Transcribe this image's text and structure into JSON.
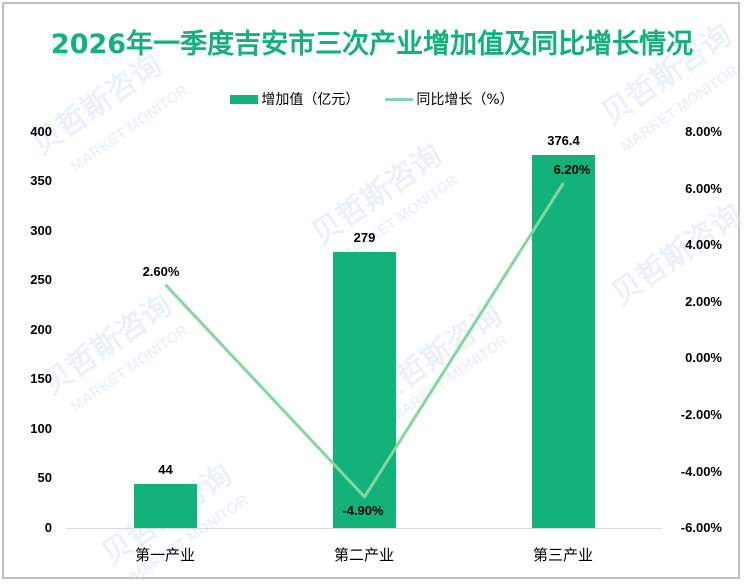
{
  "title": "2026年一季度吉安市三次产业增加值及同比增长情况",
  "legend": [
    {
      "label": "增加值（亿元）",
      "type": "bar",
      "color": "#13b27a"
    },
    {
      "label": "同比增长（%）",
      "type": "line",
      "color": "#82d8a0"
    }
  ],
  "watermark": {
    "cn": "贝哲斯咨询",
    "en": "MARKET MONITOR"
  },
  "axes": {
    "left_ticks": [
      "400",
      "350",
      "300",
      "250",
      "200",
      "150",
      "100",
      "50",
      "0"
    ],
    "right_ticks": [
      "8.00%",
      "6.00%",
      "4.00%",
      "2.00%",
      "0.00%",
      "-2.00%",
      "-4.00%",
      "-6.00%"
    ]
  },
  "categories": [
    "第一产业",
    "第二产业",
    "第三产业"
  ],
  "bar_labels": [
    "44",
    "279",
    "376.4"
  ],
  "line_labels": [
    "2.60%",
    "-4.90%",
    "6.20%"
  ],
  "colors": {
    "title": "#13b27a",
    "bar": "#13b27a",
    "line": "#82d8a0",
    "border": "#bfbfbf"
  },
  "chart_data": {
    "type": "bar",
    "title": "2026年一季度吉安市三次产业增加值及同比增长情况",
    "categories": [
      "第一产业",
      "第二产业",
      "第三产业"
    ],
    "series": [
      {
        "name": "增加值（亿元）",
        "type": "bar",
        "axis": "left",
        "values": [
          44,
          279,
          376.4
        ]
      },
      {
        "name": "同比增长（%）",
        "type": "line",
        "axis": "right",
        "values": [
          2.6,
          -4.9,
          6.2
        ]
      }
    ],
    "xlabel": "",
    "ylabel": "",
    "ylim": [
      0,
      400
    ],
    "y2lim": [
      -6,
      8
    ],
    "y_ticks": [
      0,
      50,
      100,
      150,
      200,
      250,
      300,
      350,
      400
    ],
    "y2_ticks": [
      "-6.00%",
      "-4.00%",
      "-2.00%",
      "0.00%",
      "2.00%",
      "4.00%",
      "6.00%",
      "8.00%"
    ],
    "grid": false,
    "legend_position": "top"
  }
}
